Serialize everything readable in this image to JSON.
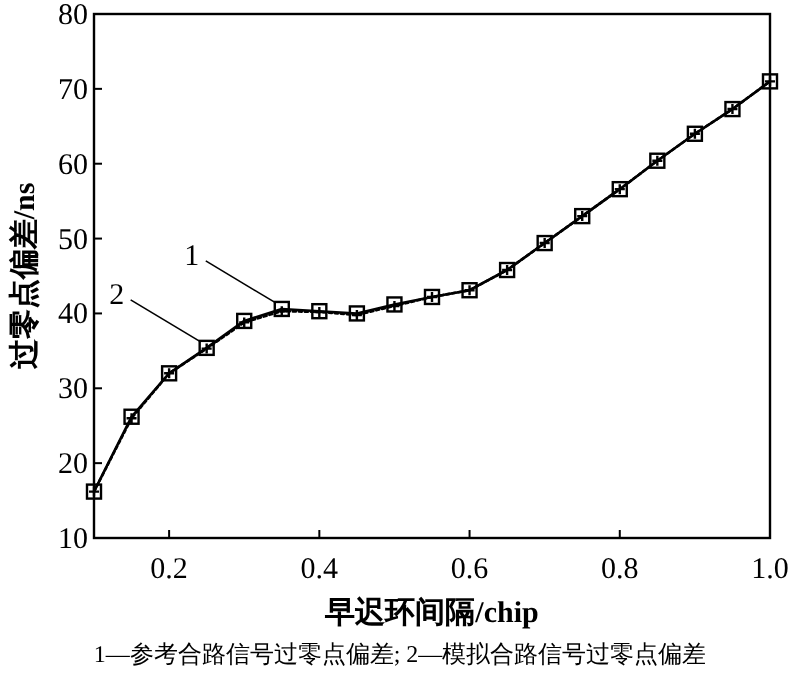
{
  "chart_data": {
    "type": "line",
    "xlabel": "早迟环间隔/chip",
    "ylabel": "过零点偏差/ns",
    "x": [
      0.1,
      0.15,
      0.2,
      0.25,
      0.3,
      0.35,
      0.4,
      0.45,
      0.5,
      0.55,
      0.6,
      0.65,
      0.7,
      0.75,
      0.8,
      0.85,
      0.9,
      0.95,
      1.0
    ],
    "series": [
      {
        "color": "#000000",
        "marker": "square",
        "line_style": "solid",
        "values": [
          16.2,
          26.2,
          32,
          35.4,
          39,
          40.6,
          40.3,
          40,
          41.2,
          42.2,
          43.1,
          45.8,
          49.4,
          53,
          56.6,
          60.4,
          64,
          67.3,
          71
        ]
      },
      {
        "color": "#000000",
        "marker": "cross",
        "line_style": "dotted",
        "values": [
          16.2,
          26,
          32,
          35.3,
          38.8,
          40.3,
          40.2,
          39.8,
          41,
          42.2,
          43.1,
          45.8,
          49.4,
          53,
          56.6,
          60.4,
          64,
          67.3,
          71
        ]
      }
    ],
    "xlim": [
      0.1,
      1.0
    ],
    "ylim": [
      10,
      80
    ],
    "xticks": [
      {
        "value": 0.1,
        "label": null
      },
      0.2,
      0.4,
      0.6,
      0.8,
      {
        "value": 1.0,
        "label": "1.0"
      }
    ],
    "yticks": [
      10,
      20,
      30,
      40,
      50,
      60,
      70,
      80
    ],
    "grid": false,
    "annotations": [
      {
        "text": "1",
        "x": 0.35,
        "y": 40.6
      },
      {
        "text": "2",
        "x": 0.25,
        "y": 35.4
      },
      "1—参考合路信号过零点偏差; 2—模拟合路信号过零点偏差"
    ]
  }
}
